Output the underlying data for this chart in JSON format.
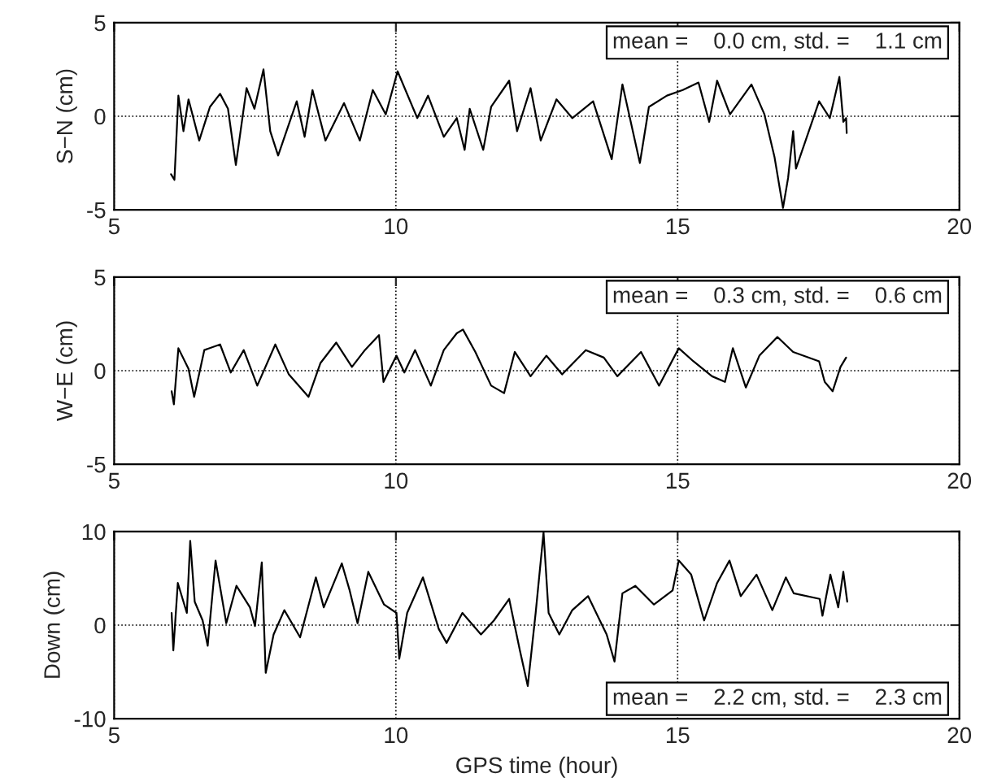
{
  "chart_data": [
    {
      "type": "line",
      "ylabel": "S−N (cm)",
      "annotations": [
        "mean =    0.0 cm, std. =    1.1 cm"
      ],
      "xlim": [
        5,
        20
      ],
      "xticks": [
        5,
        10,
        15,
        20
      ],
      "ylim": [
        -5,
        5
      ],
      "yticks": [
        -5,
        0,
        5
      ],
      "grid": true,
      "series": [
        {
          "color": "#000000",
          "x": [
            6.01,
            6.07,
            6.14,
            6.23,
            6.32,
            6.51,
            6.7,
            6.88,
            7.02,
            7.16,
            7.35,
            7.49,
            7.65,
            7.77,
            7.91,
            8.24,
            8.38,
            8.52,
            8.75,
            9.08,
            9.36,
            9.59,
            9.82,
            10.03,
            10.38,
            10.57,
            10.85,
            11.08,
            11.22,
            11.31,
            11.55,
            11.69,
            12.01,
            12.15,
            12.39,
            12.57,
            12.85,
            13.13,
            13.5,
            13.83,
            14.02,
            14.33,
            14.49,
            14.81,
            15.09,
            15.37,
            15.56,
            15.7,
            15.93,
            16.31,
            16.54,
            16.72,
            16.87,
            16.96,
            17.05,
            17.1,
            17.51,
            17.7,
            17.87,
            17.94,
            17.99,
            18.0
          ],
          "values": [
            -3.1,
            -3.4,
            1.1,
            -0.8,
            0.9,
            -1.3,
            0.5,
            1.2,
            0.4,
            -2.6,
            1.5,
            0.4,
            2.5,
            -0.8,
            -2.1,
            0.8,
            -1.1,
            1.4,
            -1.3,
            0.7,
            -1.3,
            1.4,
            0.1,
            2.4,
            -0.1,
            1.1,
            -1.1,
            -0.1,
            -1.8,
            0.4,
            -1.8,
            0.5,
            1.9,
            -0.8,
            1.5,
            -1.3,
            0.9,
            -0.1,
            0.8,
            -2.3,
            1.7,
            -2.5,
            0.5,
            1.1,
            1.4,
            1.8,
            -0.3,
            1.9,
            0.1,
            1.7,
            0.1,
            -2.2,
            -4.9,
            -3.3,
            -0.8,
            -2.8,
            0.8,
            -0.1,
            2.1,
            -0.3,
            -0.1,
            -0.9
          ]
        }
      ]
    },
    {
      "type": "line",
      "ylabel": "W−E (cm)",
      "annotations": [
        "mean =    0.3 cm, std. =    0.6 cm"
      ],
      "xlim": [
        5,
        20
      ],
      "xticks": [
        5,
        10,
        15,
        20
      ],
      "ylim": [
        -5,
        5
      ],
      "yticks": [
        -5,
        0,
        5
      ],
      "grid": true,
      "series": [
        {
          "color": "#000000",
          "x": [
            6.02,
            6.06,
            6.14,
            6.32,
            6.42,
            6.6,
            6.88,
            7.07,
            7.3,
            7.54,
            7.86,
            8.1,
            8.45,
            8.66,
            8.94,
            9.22,
            9.45,
            9.7,
            9.78,
            10.01,
            10.15,
            10.34,
            10.62,
            10.85,
            11.08,
            11.19,
            11.41,
            11.69,
            11.92,
            12.11,
            12.39,
            12.67,
            12.95,
            13.37,
            13.69,
            13.93,
            14.35,
            14.67,
            15.02,
            15.28,
            15.61,
            15.84,
            15.98,
            16.21,
            16.45,
            16.77,
            17.05,
            17.51,
            17.61,
            17.75,
            17.89,
            17.99
          ],
          "values": [
            -1.1,
            -1.8,
            1.2,
            0.1,
            -1.4,
            1.1,
            1.4,
            -0.1,
            1.1,
            -0.8,
            1.4,
            -0.2,
            -1.4,
            0.4,
            1.5,
            0.2,
            1.1,
            1.9,
            -0.6,
            0.8,
            -0.1,
            1.1,
            -0.8,
            1.1,
            2.0,
            2.2,
            1.0,
            -0.8,
            -1.2,
            1.0,
            -0.3,
            0.8,
            -0.2,
            1.1,
            0.7,
            -0.3,
            1.0,
            -0.8,
            1.2,
            0.5,
            -0.3,
            -0.6,
            1.2,
            -0.9,
            0.8,
            1.8,
            1.0,
            0.5,
            -0.6,
            -1.1,
            0.2,
            0.7
          ]
        }
      ]
    },
    {
      "type": "line",
      "xlabel": "GPS time (hour)",
      "ylabel": "Down (cm)",
      "annotations": [
        "mean =    2.2 cm, std. =    2.3 cm"
      ],
      "xlim": [
        5,
        20
      ],
      "xticks": [
        5,
        10,
        15,
        20
      ],
      "ylim": [
        -10,
        10
      ],
      "yticks": [
        -10,
        0,
        10
      ],
      "grid": true,
      "series": [
        {
          "color": "#000000",
          "x": [
            6.02,
            6.05,
            6.13,
            6.29,
            6.35,
            6.43,
            6.57,
            6.66,
            6.8,
            6.99,
            7.17,
            7.41,
            7.5,
            7.62,
            7.69,
            7.83,
            8.02,
            8.3,
            8.58,
            8.72,
            9.04,
            9.18,
            9.32,
            9.51,
            9.79,
            10.01,
            10.06,
            10.2,
            10.48,
            10.76,
            10.9,
            11.18,
            11.51,
            11.74,
            12.01,
            12.2,
            12.34,
            12.48,
            12.62,
            12.71,
            12.9,
            13.13,
            13.41,
            13.74,
            13.88,
            14.02,
            14.25,
            14.58,
            14.91,
            15.02,
            15.24,
            15.47,
            15.7,
            15.92,
            16.12,
            16.4,
            16.68,
            16.92,
            17.06,
            17.52,
            17.57,
            17.71,
            17.85,
            17.94,
            18.01
          ],
          "values": [
            1.3,
            -2.7,
            4.5,
            1.3,
            9.0,
            2.5,
            0.5,
            -2.2,
            6.9,
            0.2,
            4.2,
            1.9,
            -0.1,
            6.7,
            -5.1,
            -1.0,
            1.6,
            -1.3,
            5.1,
            1.9,
            6.6,
            3.7,
            0.2,
            5.7,
            2.2,
            1.3,
            -3.6,
            1.3,
            5.1,
            -0.4,
            -1.9,
            1.3,
            -1.0,
            0.5,
            2.8,
            -2.7,
            -6.5,
            1.3,
            9.9,
            1.3,
            -1.0,
            1.6,
            3.1,
            -1.0,
            -3.9,
            3.4,
            4.2,
            2.2,
            3.7,
            6.9,
            5.4,
            0.5,
            4.5,
            6.9,
            3.1,
            5.4,
            1.6,
            5.1,
            3.4,
            2.8,
            1.0,
            5.4,
            1.9,
            5.7,
            2.5
          ]
        }
      ]
    }
  ]
}
